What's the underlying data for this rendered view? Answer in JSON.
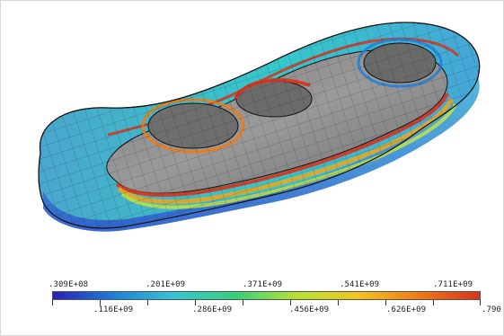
{
  "scene": {
    "background": "#ffffff",
    "mesh_surface_color": "#8c8c8c",
    "mesh_line_color": "#1a1a1a",
    "hole_count": 3
  },
  "legend": {
    "gradient": [
      "#2b1fb8",
      "#1e7fd8",
      "#35c6d6",
      "#36d07a",
      "#b8e233",
      "#f0c51f",
      "#f07a14",
      "#d8341c"
    ],
    "labels": [
      ".309E+08",
      ".116E+09",
      ".201E+09",
      ".286E+09",
      ".371E+09",
      ".456E+09",
      ".541E+09",
      ".626E+09",
      ".711E+09",
      ".790"
    ]
  }
}
